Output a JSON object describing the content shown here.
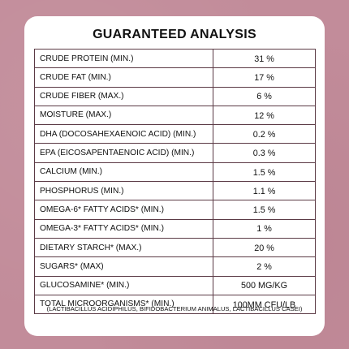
{
  "title": "GUARANTEED ANALYSIS",
  "rows": [
    {
      "name": "CRUDE PROTEIN (MIN.)",
      "value": "31 %"
    },
    {
      "name": "CRUDE FAT (MIN.)",
      "value": "17 %"
    },
    {
      "name": "CRUDE FIBER (MAX.)",
      "value": "6 %"
    },
    {
      "name": "MOISTURE (MAX.)",
      "value": "12 %"
    },
    {
      "name": "DHA (DOCOSAHEXAENOIC ACID) (MIN.)",
      "value": "0.2 %"
    },
    {
      "name": "EPA (EICOSAPENTAENOIC ACID) (MIN.)",
      "value": "0.3 %"
    },
    {
      "name": "CALCIUM (MIN.)",
      "value": "1.5 %"
    },
    {
      "name": "PHOSPHORUS (MIN.)",
      "value": "1.1 %"
    },
    {
      "name": "OMEGA-6* FATTY ACIDS* (MIN.)",
      "value": "1.5 %"
    },
    {
      "name": "OMEGA-3* FATTY ACIDS* (MIN.)",
      "value": "1 %"
    },
    {
      "name": "DIETARY STARCH* (MAX.)",
      "value": "20 %"
    },
    {
      "name": "SUGARS* (MAX)",
      "value": "2 %"
    },
    {
      "name": "GLUCOSAMINE* (MIN.)",
      "value": "500 MG/KG"
    },
    {
      "name": "TOTAL MICROORGANISMS* (MIN.)",
      "value": "100MM CFU/LB"
    }
  ],
  "footnote": "(LACTIBACILLUS ACIDIPHILUS, BIFIDOBACTERIUM ANIMALUS, LACTIBACILLUS CASEI)",
  "colors": {
    "background": "#c28c9a",
    "card": "#ffffff",
    "border": "#5b3a45",
    "text": "#111111"
  }
}
